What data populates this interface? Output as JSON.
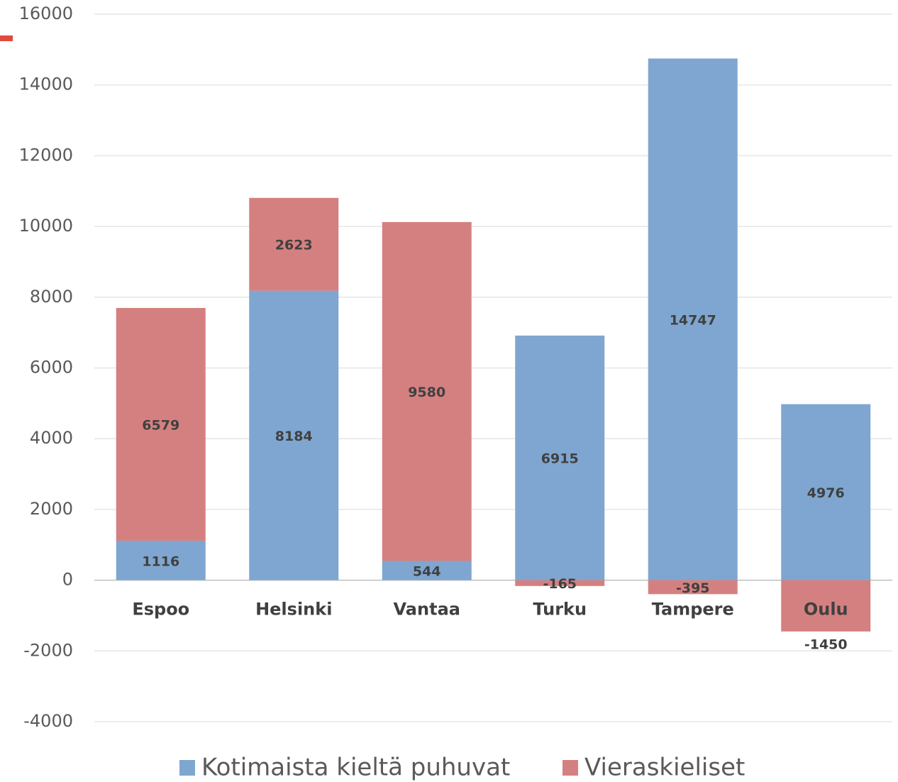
{
  "chart_data": {
    "type": "stacked_bar",
    "categories": [
      "Espoo",
      "Helsinki",
      "Vantaa",
      "Turku",
      "Tampere",
      "Oulu"
    ],
    "series": [
      {
        "name": "Kotimaista kieltä puhuvat",
        "color": "#7fa6d0",
        "values": [
          1116,
          8184,
          544,
          6915,
          14747,
          4976
        ]
      },
      {
        "name": "Vieraskieliset",
        "color": "#d58080",
        "values": [
          6579,
          2623,
          9580,
          -165,
          -395,
          -1450
        ]
      }
    ],
    "ylim": [
      -4000,
      16000
    ],
    "yticks": [
      -4000,
      -2000,
      0,
      2000,
      4000,
      6000,
      8000,
      10000,
      12000,
      14000,
      16000
    ],
    "grid": true,
    "legend": "bottom"
  }
}
